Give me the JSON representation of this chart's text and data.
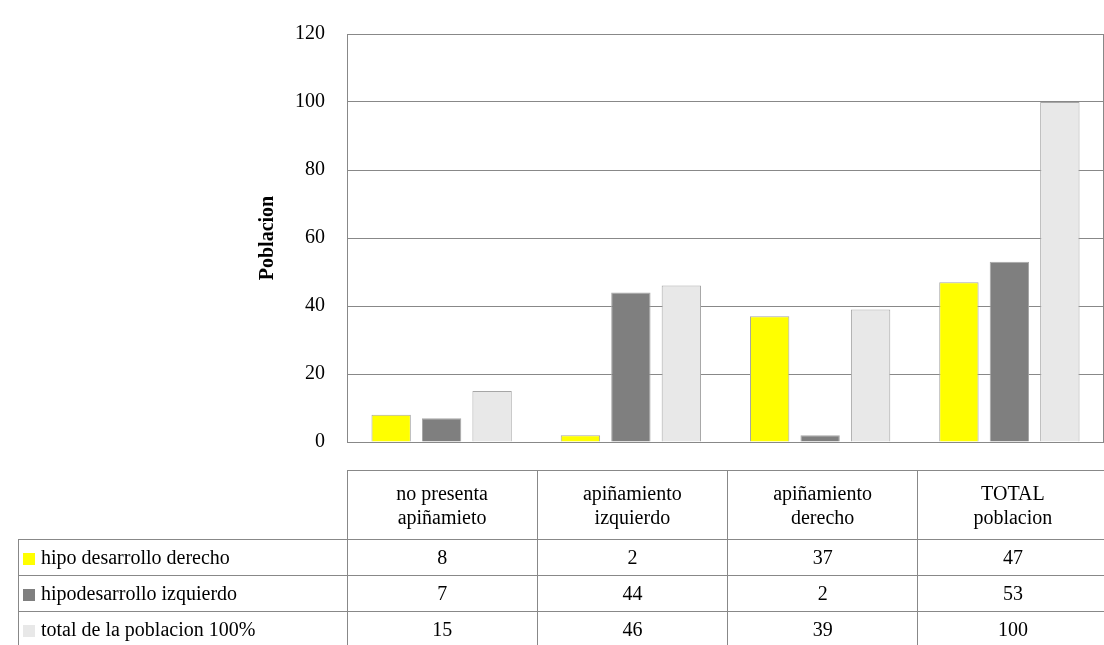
{
  "chart_data": {
    "type": "bar",
    "ylabel": "Poblacion",
    "categories": [
      "no presenta apiñamieto",
      "apiñamiento izquierdo",
      "apiñamiento derecho",
      "TOTAL poblacion"
    ],
    "series": [
      {
        "name": "hipo desarrollo derecho",
        "color": "#ffff00",
        "values": [
          8,
          2,
          37,
          47
        ]
      },
      {
        "name": "hipodesarrollo izquierdo",
        "color": "#7f7f7f",
        "values": [
          7,
          44,
          2,
          53
        ]
      },
      {
        "name": "total de la poblacion  100%",
        "color": "#e8e8e8",
        "values": [
          15,
          46,
          39,
          100
        ]
      }
    ],
    "ylim": [
      0,
      120
    ],
    "yticks": [
      0,
      20,
      40,
      60,
      80,
      100,
      120
    ],
    "grid": "y",
    "legend": "bottom",
    "data_labels": true
  }
}
